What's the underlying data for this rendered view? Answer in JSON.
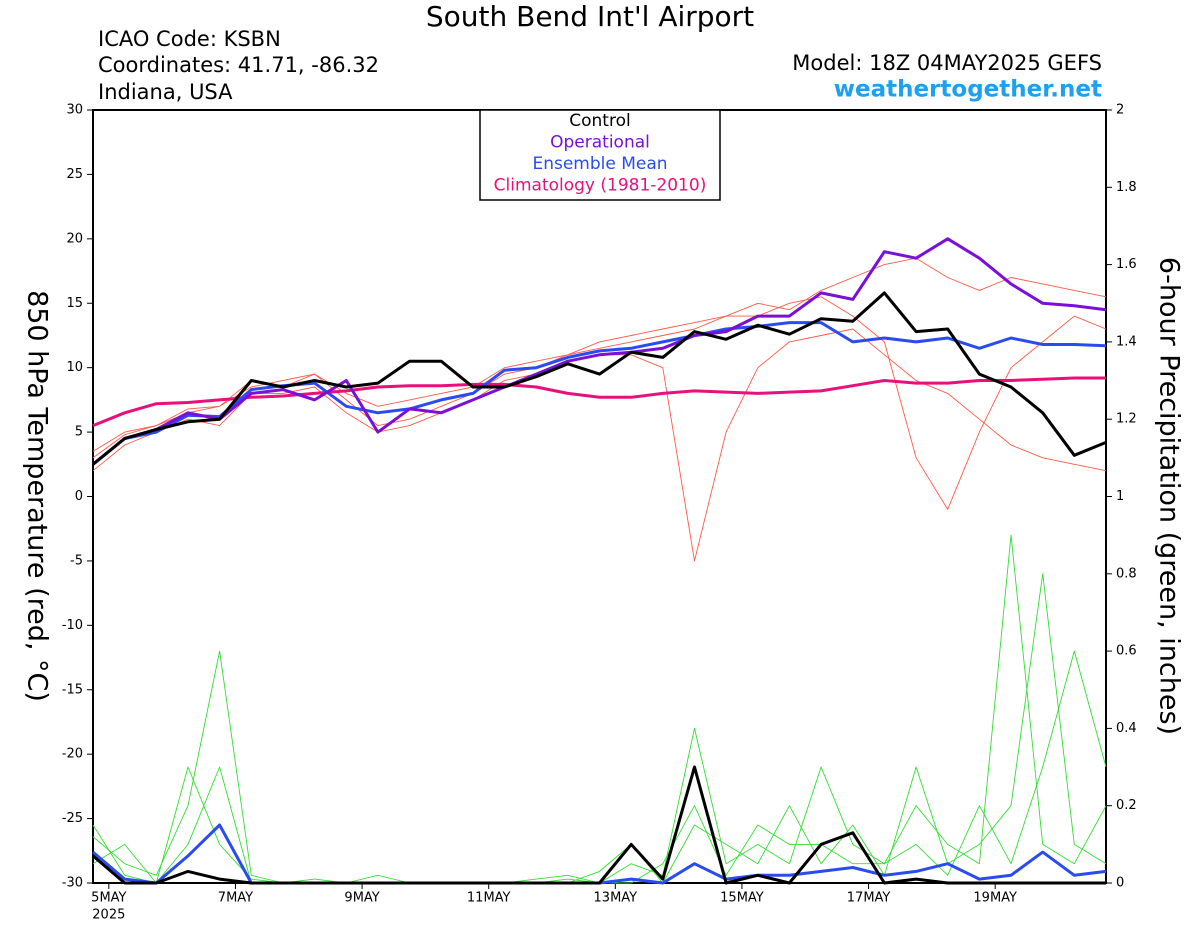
{
  "chart_data": {
    "type": "line",
    "title": "South Bend Int'l Airport",
    "info_lines": [
      "ICAO Code: KSBN",
      "Coordinates: 41.71, -86.32",
      "Indiana, USA"
    ],
    "model": "Model: 18Z 04MAY2025 GEFS",
    "source": "weathertogether.net",
    "ylabel": "850 hPa Temperature (red, °C)",
    "y2label": "6-hour Precipitation (green, inches)",
    "x_sublabel": "2025",
    "x": [
      4.75,
      5.25,
      5.75,
      6.25,
      6.75,
      7.25,
      7.75,
      8.25,
      8.75,
      9.25,
      9.75,
      10.25,
      10.75,
      11.25,
      11.75,
      12.25,
      12.75,
      13.25,
      13.75,
      14.25,
      14.75,
      15.25,
      15.75,
      16.25,
      16.75,
      17.25,
      17.75,
      18.25,
      18.75,
      19.25,
      19.75,
      20.25,
      20.75
    ],
    "xlim": [
      4.75,
      20.75
    ],
    "xticks": [
      {
        "value": 5,
        "label": "5MAY"
      },
      {
        "value": 7,
        "label": "7MAY"
      },
      {
        "value": 9,
        "label": "9MAY"
      },
      {
        "value": 11,
        "label": "11MAY"
      },
      {
        "value": 13,
        "label": "13MAY"
      },
      {
        "value": 15,
        "label": "15MAY"
      },
      {
        "value": 17,
        "label": "17MAY"
      },
      {
        "value": 19,
        "label": "19MAY"
      }
    ],
    "ylim": [
      -30,
      30
    ],
    "yticks": [
      -30,
      -25,
      -20,
      -15,
      -10,
      -5,
      0,
      5,
      10,
      15,
      20,
      25,
      30
    ],
    "y2lim": [
      0,
      2
    ],
    "y2ticks": [
      0,
      0.2,
      0.4,
      0.6,
      0.8,
      1,
      1.2,
      1.4,
      1.6,
      1.8,
      2
    ],
    "series": [
      {
        "color": "#ff5a4a",
        "values": [
          3,
          4.8,
          5.5,
          6.8,
          7,
          8.5,
          9,
          9.5,
          7.5,
          5.5,
          6,
          7,
          8,
          9.5,
          10,
          11,
          11.5,
          12,
          12.5,
          13,
          14,
          15,
          14.5,
          16,
          17,
          18,
          18.5,
          17,
          16,
          17,
          16.5,
          16,
          15.5
        ]
      },
      {
        "color": "#ff5a4a",
        "values": [
          2,
          4,
          5,
          6,
          5.5,
          8,
          8,
          8.5,
          6.5,
          5,
          5.5,
          6.5,
          7.5,
          9,
          9.5,
          10.5,
          11,
          11,
          10,
          -5,
          5,
          10,
          12,
          12.5,
          13,
          11,
          9,
          8,
          6,
          4,
          3,
          2.5,
          2
        ]
      },
      {
        "color": "#ff5a4a",
        "values": [
          3.5,
          5,
          5.5,
          6.5,
          7,
          9,
          8.5,
          9.5,
          8,
          7,
          7.5,
          8,
          8.5,
          10,
          10.5,
          11,
          12,
          12.5,
          13,
          13.5,
          14,
          14,
          15,
          15.5,
          14,
          12,
          3,
          -1,
          5,
          10,
          12,
          14,
          13
        ]
      },
      {
        "color": "#33dd33",
        "axis": "y2",
        "values": [
          0.12,
          0.05,
          0.02,
          0.2,
          0.6,
          0.02,
          0,
          0,
          0,
          0,
          0,
          0,
          0,
          0,
          0.01,
          0.02,
          0,
          0.05,
          0.02,
          0.4,
          0.05,
          0.1,
          0.05,
          0.3,
          0.1,
          0.05,
          0.2,
          0.1,
          0.05,
          0.9,
          0.1,
          0.05,
          0.2
        ]
      },
      {
        "color": "#33dd33",
        "axis": "y2",
        "values": [
          0.05,
          0.1,
          0,
          0.1,
          0.3,
          0,
          0,
          0.01,
          0,
          0.02,
          0,
          0,
          0,
          0,
          0,
          0,
          0.03,
          0.1,
          0,
          0.15,
          0.1,
          0.05,
          0.2,
          0.05,
          0.15,
          0.02,
          0.3,
          0.05,
          0.1,
          0.2,
          0.8,
          0.1,
          0.05
        ]
      },
      {
        "color": "#33dd33",
        "axis": "y2",
        "values": [
          0.15,
          0.02,
          0,
          0.3,
          0.1,
          0.01,
          0,
          0,
          0,
          0,
          0,
          0,
          0,
          0,
          0,
          0.01,
          0,
          0,
          0.05,
          0.2,
          0.02,
          0.15,
          0.1,
          0.1,
          0.05,
          0.05,
          0.1,
          0.02,
          0.2,
          0.05,
          0.3,
          0.6,
          0.3
        ]
      },
      {
        "color": "#2a4bf0",
        "axis": "y2",
        "values": [
          0.08,
          0.01,
          0,
          0.07,
          0.15,
          0,
          0,
          0,
          0,
          0,
          0,
          0,
          0,
          0,
          0,
          0,
          0,
          0.01,
          0,
          0.05,
          0.01,
          0.02,
          0.02,
          0.03,
          0.04,
          0.02,
          0.03,
          0.05,
          0.01,
          0.02,
          0.08,
          0.02,
          0.03
        ]
      },
      {
        "color": "#000000",
        "axis": "y2",
        "values": [
          0.07,
          0,
          0,
          0.03,
          0.01,
          0,
          0,
          0,
          0,
          0,
          0,
          0,
          0,
          0,
          0,
          0,
          0,
          0.1,
          0.01,
          0.3,
          0,
          0.02,
          0,
          0.1,
          0.13,
          0,
          0.01,
          0,
          0,
          0,
          0,
          0,
          0
        ]
      },
      {
        "name": "Control",
        "color": "#000000",
        "values": [
          2.5,
          4.5,
          5.2,
          5.8,
          6,
          9,
          8.5,
          9,
          8.5,
          8.8,
          10.5,
          10.5,
          8.5,
          8.5,
          9.3,
          10.3,
          9.5,
          11.2,
          10.8,
          12.8,
          12.2,
          13.3,
          12.6,
          13.8,
          13.6,
          15.8,
          12.8,
          13,
          9.5,
          8.5,
          6.5,
          3.2,
          4.2
        ]
      },
      {
        "name": "Operational",
        "color": "#7a10d8",
        "values": [
          2.5,
          4.5,
          5.2,
          6.5,
          6,
          8,
          8.3,
          7.5,
          9,
          5,
          6.8,
          6.5,
          7.5,
          8.5,
          9.5,
          10.5,
          11,
          11.2,
          11.5,
          12.5,
          12.8,
          14,
          14,
          15.8,
          15.3,
          19,
          18.5,
          20,
          18.5,
          16.5,
          15,
          14.8,
          14.5
        ]
      },
      {
        "name": "Ensemble Mean",
        "color": "#2a4bf0",
        "values": [
          2.5,
          4.5,
          5,
          6.3,
          6.2,
          8.3,
          8.6,
          8.8,
          7,
          6.5,
          6.8,
          7.5,
          8,
          9.8,
          10,
          10.8,
          11.3,
          11.5,
          12,
          12.5,
          13,
          13.2,
          13.5,
          13.5,
          12,
          12.3,
          12,
          12.3,
          11.5,
          12.3,
          11.8,
          11.8,
          11.7
        ]
      },
      {
        "name": "Climatology (1981-2010)",
        "color": "#e8107a",
        "values": [
          5.5,
          6.5,
          7.2,
          7.3,
          7.5,
          7.7,
          7.8,
          8,
          8.2,
          8.5,
          8.6,
          8.6,
          8.7,
          8.7,
          8.5,
          8,
          7.7,
          7.7,
          8,
          8.2,
          8.1,
          8,
          8.1,
          8.2,
          8.6,
          9,
          8.8,
          8.8,
          9,
          9,
          9.1,
          9.2,
          9.2
        ]
      }
    ]
  }
}
